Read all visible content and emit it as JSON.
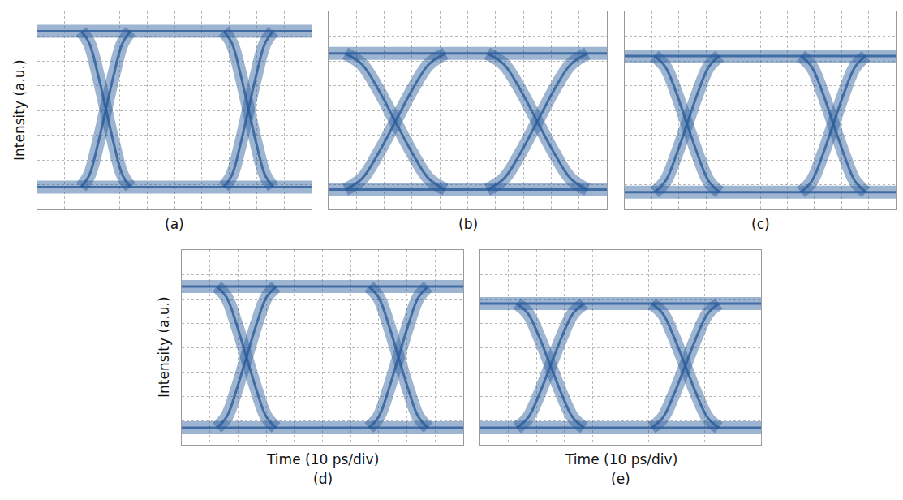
{
  "chart_data": [
    {
      "type": "line",
      "title": "(a)",
      "ylabel": "Intensity (a.u.)",
      "xlim": [
        0,
        10
      ],
      "ylim": [
        0,
        8
      ],
      "xticks": [
        0,
        1,
        2,
        3,
        4,
        5,
        6,
        7,
        8,
        9,
        10
      ],
      "yticks": [
        0,
        1,
        2,
        3,
        4,
        5,
        6,
        7,
        8
      ],
      "grid": true,
      "tick_labels": false,
      "color": "#2a5c9a",
      "series": [
        {
          "x": [
            0,
            10
          ],
          "values": [
            7.2,
            7.2
          ]
        },
        {
          "x": [
            0,
            10
          ],
          "values": [
            0.9,
            0.9
          ]
        },
        {
          "x": [
            1.6,
            1.9,
            2.2,
            2.5,
            2.8,
            3.1,
            3.4
          ],
          "values": [
            7.2,
            6.7,
            5.5,
            4.05,
            2.6,
            1.4,
            0.9
          ]
        },
        {
          "x": [
            1.6,
            1.9,
            2.2,
            2.5,
            2.8,
            3.1,
            3.4
          ],
          "values": [
            0.9,
            1.4,
            2.6,
            4.05,
            5.5,
            6.7,
            7.2
          ]
        },
        {
          "x": [
            6.8,
            7.1,
            7.4,
            7.7,
            8.0,
            8.3,
            8.6
          ],
          "values": [
            7.2,
            6.7,
            5.5,
            4.05,
            2.6,
            1.4,
            0.9
          ]
        },
        {
          "x": [
            6.8,
            7.1,
            7.4,
            7.7,
            8.0,
            8.3,
            8.6
          ],
          "values": [
            0.9,
            1.4,
            2.6,
            4.05,
            5.5,
            6.7,
            7.2
          ]
        }
      ]
    },
    {
      "type": "line",
      "title": "(b)",
      "xlim": [
        0,
        10
      ],
      "ylim": [
        0,
        8
      ],
      "xticks": [
        0,
        1,
        2,
        3,
        4,
        5,
        6,
        7,
        8,
        9,
        10
      ],
      "yticks": [
        0,
        1,
        2,
        3,
        4,
        5,
        6,
        7,
        8
      ],
      "grid": true,
      "tick_labels": false,
      "color": "#2a5c9a",
      "series": [
        {
          "x": [
            0,
            10
          ],
          "values": [
            6.3,
            6.3
          ]
        },
        {
          "x": [
            0,
            10
          ],
          "values": [
            0.8,
            0.8
          ]
        },
        {
          "x": [
            0.6,
            1.2,
            1.8,
            2.4,
            3.0,
            3.6,
            4.2
          ],
          "values": [
            6.3,
            5.86,
            4.82,
            3.55,
            2.29,
            1.24,
            0.8
          ]
        },
        {
          "x": [
            0.6,
            1.2,
            1.8,
            2.4,
            3.0,
            3.6,
            4.2
          ],
          "values": [
            0.8,
            1.24,
            2.29,
            3.55,
            4.82,
            5.86,
            6.3
          ]
        },
        {
          "x": [
            5.7,
            6.3,
            6.9,
            7.5,
            8.1,
            8.7,
            9.3
          ],
          "values": [
            6.3,
            5.86,
            4.82,
            3.55,
            2.29,
            1.24,
            0.8
          ]
        },
        {
          "x": [
            5.7,
            6.3,
            6.9,
            7.5,
            8.1,
            8.7,
            9.3
          ],
          "values": [
            0.8,
            1.24,
            2.29,
            3.55,
            4.82,
            5.86,
            6.3
          ]
        }
      ]
    },
    {
      "type": "line",
      "title": "(c)",
      "xlim": [
        0,
        10
      ],
      "ylim": [
        0,
        8
      ],
      "xticks": [
        0,
        1,
        2,
        3,
        4,
        5,
        6,
        7,
        8,
        9,
        10
      ],
      "yticks": [
        0,
        1,
        2,
        3,
        4,
        5,
        6,
        7,
        8
      ],
      "grid": true,
      "tick_labels": false,
      "color": "#2a5c9a",
      "series": [
        {
          "x": [
            0,
            10
          ],
          "values": [
            6.2,
            6.2
          ]
        },
        {
          "x": [
            0,
            10
          ],
          "values": [
            0.7,
            0.7
          ]
        },
        {
          "x": [
            1.1,
            1.5,
            1.9,
            2.3,
            2.7,
            3.1,
            3.5
          ],
          "values": [
            6.2,
            5.76,
            4.72,
            3.45,
            2.19,
            1.14,
            0.7
          ]
        },
        {
          "x": [
            1.1,
            1.5,
            1.9,
            2.3,
            2.7,
            3.1,
            3.5
          ],
          "values": [
            0.7,
            1.14,
            2.19,
            3.45,
            4.72,
            5.76,
            6.2
          ]
        },
        {
          "x": [
            6.5,
            6.9,
            7.3,
            7.7,
            8.1,
            8.5,
            8.9
          ],
          "values": [
            6.2,
            5.76,
            4.72,
            3.45,
            2.19,
            1.14,
            0.7
          ]
        },
        {
          "x": [
            6.5,
            6.9,
            7.3,
            7.7,
            8.1,
            8.5,
            8.9
          ],
          "values": [
            0.7,
            1.14,
            2.19,
            3.45,
            4.72,
            5.76,
            6.2
          ]
        }
      ]
    },
    {
      "type": "line",
      "title": "(d)",
      "xlabel": "Time (10 ps/div)",
      "ylabel": "Intensity (a.u.)",
      "xlim": [
        0,
        10
      ],
      "ylim": [
        0,
        8
      ],
      "xticks": [
        0,
        1,
        2,
        3,
        4,
        5,
        6,
        7,
        8,
        9,
        10
      ],
      "yticks": [
        0,
        1,
        2,
        3,
        4,
        5,
        6,
        7,
        8
      ],
      "grid": true,
      "tick_labels": false,
      "color": "#2a5c9a",
      "series": [
        {
          "x": [
            0,
            10
          ],
          "values": [
            6.5,
            6.5
          ]
        },
        {
          "x": [
            0,
            10
          ],
          "values": [
            0.7,
            0.7
          ]
        },
        {
          "x": [
            1.25,
            1.6,
            1.95,
            2.3,
            2.65,
            3.0,
            3.35
          ],
          "values": [
            6.5,
            6.04,
            4.93,
            3.6,
            2.27,
            1.16,
            0.7
          ]
        },
        {
          "x": [
            1.25,
            1.6,
            1.95,
            2.3,
            2.65,
            3.0,
            3.35
          ],
          "values": [
            0.7,
            1.16,
            2.27,
            3.6,
            4.93,
            6.04,
            6.5
          ]
        },
        {
          "x": [
            6.65,
            7.0,
            7.35,
            7.7,
            8.05,
            8.4,
            8.75
          ],
          "values": [
            6.5,
            6.04,
            4.93,
            3.6,
            2.27,
            1.16,
            0.7
          ]
        },
        {
          "x": [
            6.65,
            7.0,
            7.35,
            7.7,
            8.05,
            8.4,
            8.75
          ],
          "values": [
            0.7,
            1.16,
            2.27,
            3.6,
            4.93,
            6.04,
            6.5
          ]
        }
      ]
    },
    {
      "type": "line",
      "title": "(e)",
      "xlabel": "Time (10 ps/div)",
      "xlim": [
        0,
        10
      ],
      "ylim": [
        0,
        8
      ],
      "xticks": [
        0,
        1,
        2,
        3,
        4,
        5,
        6,
        7,
        8,
        9,
        10
      ],
      "yticks": [
        0,
        1,
        2,
        3,
        4,
        5,
        6,
        7,
        8
      ],
      "grid": true,
      "tick_labels": false,
      "color": "#2a5c9a",
      "series": [
        {
          "x": [
            0,
            10
          ],
          "values": [
            5.8,
            5.8
          ]
        },
        {
          "x": [
            0,
            10
          ],
          "values": [
            0.7,
            0.7
          ]
        },
        {
          "x": [
            1.3,
            1.7,
            2.1,
            2.5,
            2.9,
            3.3,
            3.7
          ],
          "values": [
            5.8,
            5.39,
            4.42,
            3.25,
            2.08,
            1.11,
            0.7
          ]
        },
        {
          "x": [
            1.3,
            1.7,
            2.1,
            2.5,
            2.9,
            3.3,
            3.7
          ],
          "values": [
            0.7,
            1.11,
            2.08,
            3.25,
            4.42,
            5.39,
            5.8
          ]
        },
        {
          "x": [
            6.1,
            6.5,
            6.9,
            7.3,
            7.7,
            8.1,
            8.5
          ],
          "values": [
            5.8,
            5.39,
            4.42,
            3.25,
            2.08,
            1.11,
            0.7
          ]
        },
        {
          "x": [
            6.1,
            6.5,
            6.9,
            7.3,
            7.7,
            8.1,
            8.5
          ],
          "values": [
            0.7,
            1.11,
            2.08,
            3.25,
            4.42,
            5.39,
            5.8
          ]
        }
      ]
    }
  ]
}
